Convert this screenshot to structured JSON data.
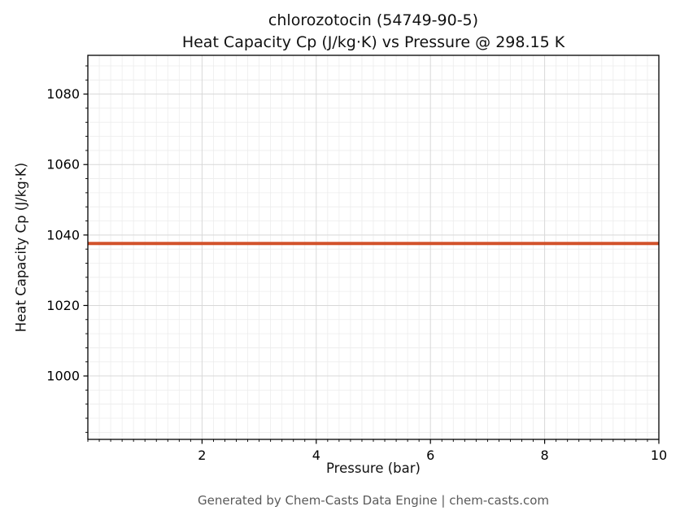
{
  "chart_data": {
    "type": "line",
    "title": "chlorozotocin (54749-90-5)",
    "subtitle": "Heat Capacity Cp (J/kg·K) vs Pressure @ 298.15 K",
    "xlabel": "Pressure (bar)",
    "ylabel": "Heat Capacity Cp (J/kg·K)",
    "xlim": [
      0,
      10
    ],
    "ylim": [
      982,
      1091
    ],
    "xticks": [
      2,
      4,
      6,
      8,
      10
    ],
    "yticks": [
      1000,
      1020,
      1040,
      1060,
      1080
    ],
    "x_minor_step": 0.2,
    "y_minor_step": 4,
    "grid": true,
    "legend": "none",
    "series": [
      {
        "name": "Heat Capacity Cp",
        "color": "#d2522b",
        "linewidth": 4,
        "x": [
          0,
          10
        ],
        "y": [
          1037.6,
          1037.6
        ]
      }
    ]
  },
  "footer_text": "Generated by Chem-Casts Data Engine | chem-casts.com",
  "colors": {
    "line": "#d2522b",
    "major_grid": "#d8d8d8",
    "minor_grid": "#ececec",
    "spine": "#000000",
    "tick_label": "#000000",
    "footer": "#5a5a5a"
  }
}
